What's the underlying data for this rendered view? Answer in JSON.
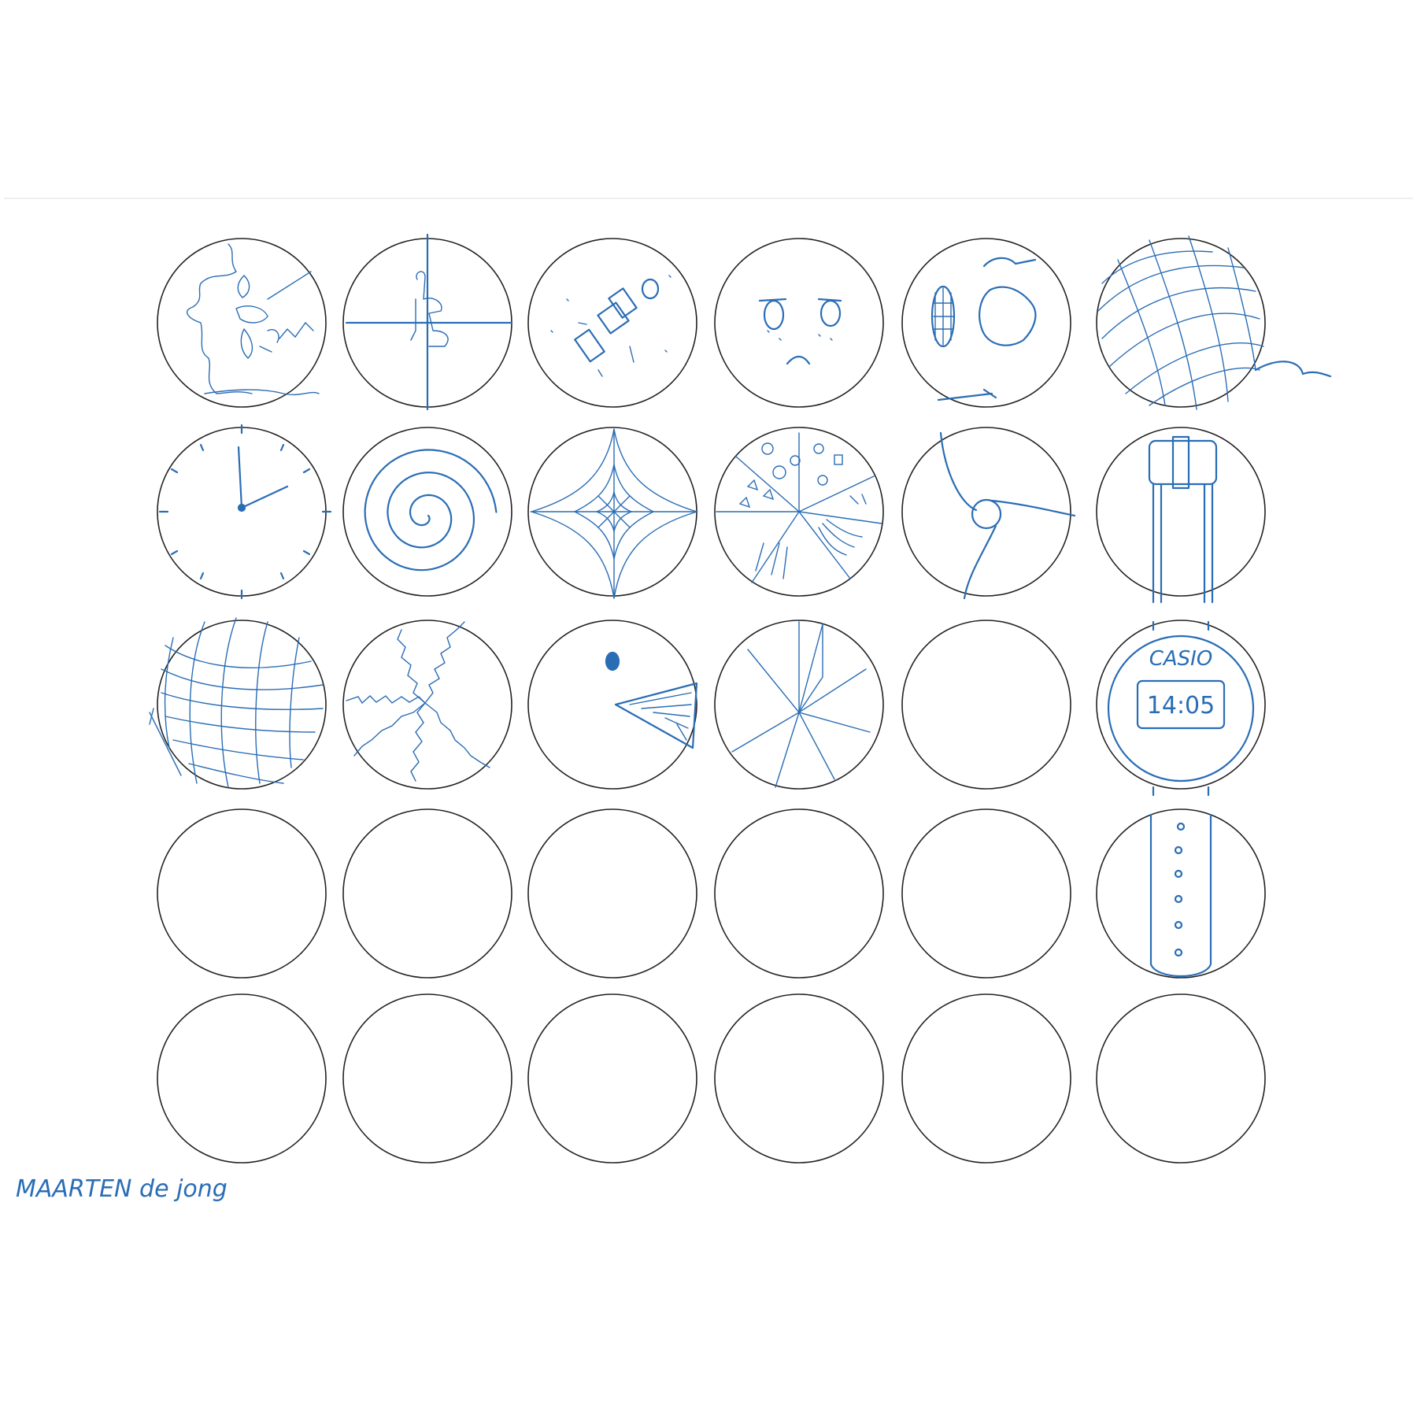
{
  "sheet": {
    "ink_color": "#2a6db5",
    "outline_color": "#222222",
    "grid_rows": 5,
    "grid_cols": 6
  },
  "circles": [
    {
      "row": 0,
      "col": 0,
      "drawing": "world-map"
    },
    {
      "row": 0,
      "col": 1,
      "drawing": "crosshair-figure"
    },
    {
      "row": 0,
      "col": 2,
      "drawing": "satellite-in-space"
    },
    {
      "row": 0,
      "col": 3,
      "drawing": "sad-face"
    },
    {
      "row": 0,
      "col": 4,
      "drawing": "plate-with-food-and-cutlery"
    },
    {
      "row": 0,
      "col": 5,
      "drawing": "yarn-ball"
    },
    {
      "row": 1,
      "col": 0,
      "drawing": "clock"
    },
    {
      "row": 1,
      "col": 1,
      "drawing": "spiral"
    },
    {
      "row": 1,
      "col": 2,
      "drawing": "spider-web"
    },
    {
      "row": 1,
      "col": 3,
      "drawing": "pizza"
    },
    {
      "row": 1,
      "col": 4,
      "drawing": "swirl"
    },
    {
      "row": 1,
      "col": 5,
      "drawing": "watch-strap-buckle"
    },
    {
      "row": 2,
      "col": 0,
      "drawing": "mesh-sphere"
    },
    {
      "row": 2,
      "col": 1,
      "drawing": "jagged-segments"
    },
    {
      "row": 2,
      "col": 2,
      "drawing": "pac-man-bird"
    },
    {
      "row": 2,
      "col": 3,
      "drawing": "umbrella-top"
    },
    {
      "row": 2,
      "col": 4,
      "drawing": "empty"
    },
    {
      "row": 2,
      "col": 5,
      "drawing": "wristwatch-face"
    },
    {
      "row": 3,
      "col": 0,
      "drawing": "empty"
    },
    {
      "row": 3,
      "col": 1,
      "drawing": "empty"
    },
    {
      "row": 3,
      "col": 2,
      "drawing": "empty"
    },
    {
      "row": 3,
      "col": 3,
      "drawing": "empty"
    },
    {
      "row": 3,
      "col": 4,
      "drawing": "empty"
    },
    {
      "row": 3,
      "col": 5,
      "drawing": "watch-strap-holes"
    },
    {
      "row": 4,
      "col": 0,
      "drawing": "empty"
    },
    {
      "row": 4,
      "col": 1,
      "drawing": "empty"
    },
    {
      "row": 4,
      "col": 2,
      "drawing": "empty"
    },
    {
      "row": 4,
      "col": 3,
      "drawing": "empty"
    },
    {
      "row": 4,
      "col": 4,
      "drawing": "empty"
    },
    {
      "row": 4,
      "col": 5,
      "drawing": "empty"
    }
  ],
  "watch": {
    "brand": "CASIO",
    "time": "14:05"
  },
  "signature": "MAARTEN de jong"
}
